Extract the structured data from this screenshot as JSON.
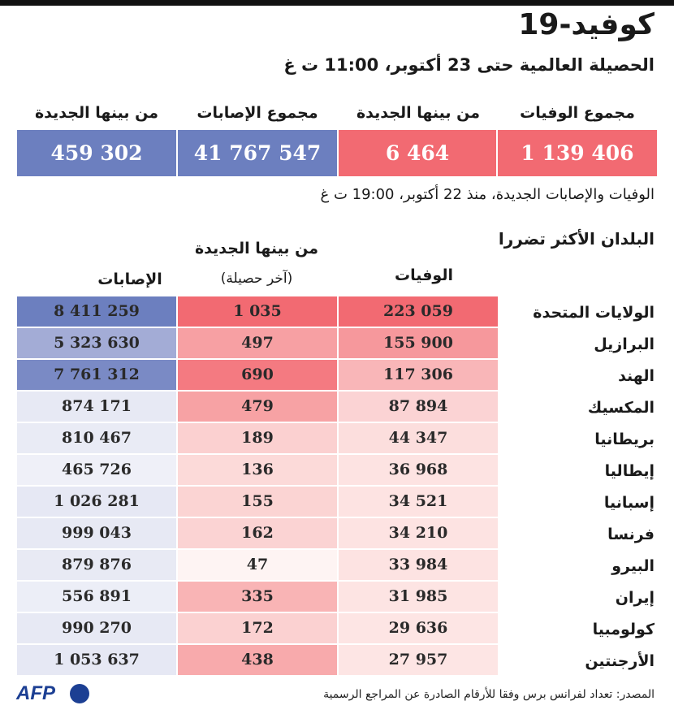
{
  "header": {
    "title": "كوفيد-19",
    "subtitle": "الحصيلة العالمية حتى 23 أكتوبر، 11:00 ت غ"
  },
  "summary": {
    "labels": [
      "مجموع الوفيات",
      "من بينها الجديدة",
      "مجموع الإصابات",
      "من بينها الجديدة"
    ],
    "values": [
      "1 139 406",
      "6 464",
      "41 767 547",
      "459 302"
    ],
    "colors": [
      "#f26a72",
      "#f26a72",
      "#6c7fbf",
      "#6c7fbf"
    ]
  },
  "since_note": "الوفيات والإصابات الجديدة، منذ 22 أكتوبر، 19:00 ت غ",
  "table": {
    "heading": "البلدان الأكثر تضررا",
    "col_deaths": "الوفيات",
    "col_new": "من بينها الجديدة",
    "col_new_sub": "(آخر حصيلة)",
    "col_cases": "الإصابات",
    "rows": [
      {
        "country": "الولايات المتحدة",
        "deaths": "223 059",
        "new": "1 035",
        "cases": "8 411 259"
      },
      {
        "country": "البرازيل",
        "deaths": "155 900",
        "new": "497",
        "cases": "5 323 630"
      },
      {
        "country": "الهند",
        "deaths": "117 306",
        "new": "690",
        "cases": "7 761 312"
      },
      {
        "country": "المكسيك",
        "deaths": "87 894",
        "new": "479",
        "cases": "874 171"
      },
      {
        "country": "بريطانيا",
        "deaths": "44 347",
        "new": "189",
        "cases": "810 467"
      },
      {
        "country": "إيطاليا",
        "deaths": "36 968",
        "new": "136",
        "cases": "465 726"
      },
      {
        "country": "إسبانيا",
        "deaths": "34 521",
        "new": "155",
        "cases": "1 026 281"
      },
      {
        "country": "فرنسا",
        "deaths": "34 210",
        "new": "162",
        "cases": "999 043"
      },
      {
        "country": "البيرو",
        "deaths": "33 984",
        "new": "47",
        "cases": "879 876"
      },
      {
        "country": "إيران",
        "deaths": "31 985",
        "new": "335",
        "cases": "556 891"
      },
      {
        "country": "كولومبيا",
        "deaths": "29 636",
        "new": "172",
        "cases": "990 270"
      },
      {
        "country": "الأرجنتين",
        "deaths": "27 957",
        "new": "438",
        "cases": "1 053 637"
      }
    ],
    "deaths_colors": [
      "#f26a72",
      "#f6989c",
      "#f9b6b8",
      "#fbd3d4",
      "#fcdedd",
      "#fde3e2",
      "#fde3e2",
      "#fde3e2",
      "#fde3e2",
      "#fde4e3",
      "#fde5e4",
      "#fde5e4"
    ],
    "new_colors": [
      "#f26a72",
      "#f7a0a3",
      "#f47a81",
      "#f7a2a4",
      "#fbd0d0",
      "#fcdad9",
      "#fbd4d3",
      "#fbd3d3",
      "#fef4f3",
      "#f9b4b5",
      "#fbd1d1",
      "#f8aaac"
    ],
    "cases_colors": [
      "#6c7fbf",
      "#a3acd6",
      "#7a8ac5",
      "#e7e9f4",
      "#e9ebf5",
      "#eff0f8",
      "#e6e8f4",
      "#e7e9f4",
      "#e8eaf4",
      "#eceef7",
      "#e7e9f4",
      "#e6e8f4"
    ]
  },
  "footer": {
    "logo": "AFP",
    "source": "المصدر: تعداد لفرانس برس وفقا للأرقام الصادرة عن المراجع الرسمية"
  }
}
